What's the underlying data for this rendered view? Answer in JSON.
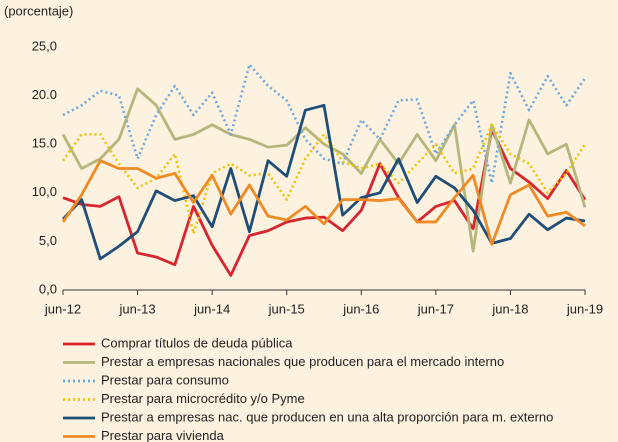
{
  "chart_data": {
    "type": "line",
    "ylabel": "(porcentaje)",
    "categories": [
      "jun-12",
      null,
      null,
      null,
      "jun-13",
      null,
      null,
      null,
      "jun-14",
      null,
      null,
      null,
      "jun-15",
      null,
      null,
      null,
      "jun-16",
      null,
      null,
      null,
      "jun-17",
      null,
      null,
      null,
      "jun-18",
      null,
      null,
      null,
      "jun-19"
    ],
    "ylim": [
      0,
      25
    ],
    "yticks": [
      {
        "value": 0,
        "label": "0,0"
      },
      {
        "value": 5,
        "label": "5,0"
      },
      {
        "value": 10,
        "label": "10,0"
      },
      {
        "value": 15,
        "label": "15.0"
      },
      {
        "value": 20,
        "label": "20.0"
      },
      {
        "value": 25,
        "label": "25,0"
      }
    ],
    "grid": false,
    "legend": "bottom",
    "series": [
      {
        "name": "Comprar títulos de deuda pública",
        "color": "#d7242f",
        "style": "solid",
        "values": [
          9.5,
          8.8,
          8.6,
          9.6,
          3.8,
          3.4,
          2.6,
          8.6,
          4.6,
          1.5,
          5.6,
          6.1,
          7.0,
          7.4,
          7.5,
          6.1,
          8.2,
          13.0,
          9.5,
          7.0,
          8.6,
          9.2,
          6.3,
          16.5,
          12.5,
          11.1,
          9.4,
          12.3,
          9.3
        ]
      },
      {
        "name": "Prestar a empresas nacionales que producen para el mercado interno",
        "color": "#b5b67c",
        "style": "solid",
        "values": [
          16.0,
          12.5,
          13.5,
          15.5,
          20.7,
          19.0,
          15.5,
          16.0,
          17.0,
          16.0,
          15.5,
          14.7,
          14.9,
          16.7,
          15.0,
          14.0,
          12.0,
          15.5,
          13.0,
          16.0,
          13.3,
          17.0,
          4.0,
          17.0,
          11.0,
          17.5,
          14.0,
          15.0,
          8.5
        ]
      },
      {
        "name": "Prestar para consumo",
        "color": "#6fa8dc",
        "style": "dotted",
        "values": [
          18.0,
          19.0,
          20.5,
          20.0,
          13.5,
          18.0,
          21.0,
          18.0,
          20.3,
          16.0,
          23.2,
          21.0,
          19.5,
          15.5,
          13.5,
          13.0,
          17.5,
          15.5,
          19.5,
          19.6,
          14.0,
          17.0,
          19.5,
          11.0,
          22.3,
          18.5,
          22.0,
          19.0,
          21.8
        ]
      },
      {
        "name": "Prestar para microcrédito y/o Pyme",
        "color": "#f2c200",
        "style": "dotted",
        "values": [
          13.3,
          16.0,
          16.0,
          13.0,
          10.5,
          11.5,
          14.0,
          5.8,
          12.0,
          13.0,
          11.8,
          12.0,
          9.3,
          13.5,
          16.0,
          13.2,
          12.5,
          13.0,
          11.0,
          13.0,
          15.0,
          12.0,
          12.5,
          17.0,
          14.0,
          13.0,
          10.0,
          12.0,
          15.0
        ]
      },
      {
        "name": "Prestar a empresas nac. que producen en una alta proporción para m. externo",
        "color": "#1f4e79",
        "style": "solid",
        "values": [
          7.3,
          9.3,
          3.2,
          4.5,
          6.0,
          10.2,
          9.2,
          9.7,
          6.5,
          12.5,
          6.0,
          13.3,
          11.7,
          18.5,
          19.0,
          7.7,
          9.5,
          10.0,
          13.5,
          9.0,
          11.7,
          10.5,
          8.2,
          4.8,
          5.3,
          7.8,
          6.2,
          7.4,
          7.1
        ]
      },
      {
        "name": "Prestar para vivienda",
        "color": "#f08a24",
        "style": "solid",
        "values": [
          7.0,
          9.8,
          13.3,
          12.5,
          12.5,
          11.5,
          12.0,
          9.0,
          11.8,
          7.8,
          10.8,
          7.6,
          7.2,
          8.6,
          6.8,
          9.3,
          9.3,
          9.2,
          9.4,
          7.0,
          7.0,
          9.5,
          11.8,
          4.7,
          9.8,
          10.8,
          7.6,
          8.0,
          6.6
        ]
      }
    ]
  }
}
